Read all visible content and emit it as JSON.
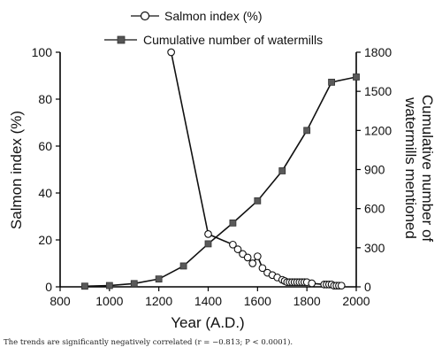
{
  "chart_data": {
    "type": "line",
    "xlabel": "Year (A.D.)",
    "ylabel_left": "Salmon index (%)",
    "ylabel_right": "Cumulative number of\nwatermills mentioned",
    "xlim": [
      800,
      2000
    ],
    "ylim_left": [
      0,
      100
    ],
    "ylim_right": [
      0,
      1800
    ],
    "x_ticks": [
      "800",
      "1000",
      "1200",
      "1400",
      "1600",
      "1800",
      "2000"
    ],
    "y_ticks_left": [
      "0",
      "20",
      "40",
      "60",
      "80",
      "100"
    ],
    "y_ticks_right": [
      "0",
      "300",
      "600",
      "900",
      "1200",
      "1500",
      "1800"
    ],
    "grid": false,
    "legend_position": "top-center",
    "series": [
      {
        "name": "Salmon index (%)",
        "axis": "left",
        "marker": "open-circle",
        "color": "#111111",
        "x": [
          1250,
          1400,
          1500,
          1520,
          1540,
          1560,
          1580,
          1600,
          1620,
          1640,
          1660,
          1680,
          1700,
          1710,
          1720,
          1730,
          1740,
          1750,
          1760,
          1770,
          1780,
          1790,
          1800,
          1820,
          1870,
          1880,
          1890,
          1900,
          1910,
          1920,
          1930,
          1940
        ],
        "y": [
          100,
          22.5,
          18,
          16,
          14,
          12.5,
          10,
          13,
          8,
          6,
          5,
          4,
          3,
          2.5,
          2,
          2,
          2,
          2,
          2,
          2,
          2,
          2,
          2,
          1.5,
          1,
          1,
          1,
          1,
          0.5,
          0.5,
          0.5,
          0.5
        ]
      },
      {
        "name": "Cumulative number of watermills",
        "axis": "right",
        "marker": "filled-square",
        "color": "#555555",
        "x": [
          900,
          1000,
          1100,
          1200,
          1300,
          1400,
          1500,
          1600,
          1700,
          1800,
          1900,
          2000
        ],
        "y": [
          5,
          10,
          25,
          60,
          160,
          330,
          490,
          660,
          890,
          1200,
          1570,
          1610
        ]
      }
    ]
  },
  "caption": "The trends are significantly negatively correlated (r = −0.813; P < 0.0001)."
}
